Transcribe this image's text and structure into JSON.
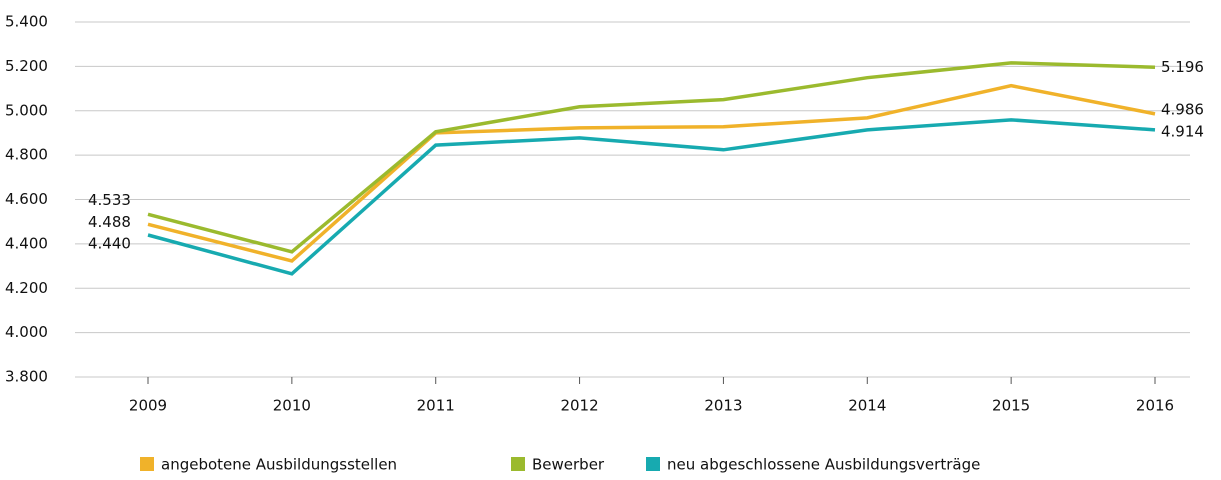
{
  "chart_data": {
    "type": "line",
    "categories": [
      "2009",
      "2010",
      "2011",
      "2012",
      "2013",
      "2014",
      "2015",
      "2016"
    ],
    "series": [
      {
        "name": "angebotene Ausbildungsstellen",
        "color": "#f0b22a",
        "values": [
          4488,
          4323,
          4900,
          4923,
          4928,
          4968,
          5113,
          4986
        ],
        "value_labels": [
          "4.488",
          null,
          null,
          null,
          null,
          null,
          null,
          "4.986"
        ]
      },
      {
        "name": "Bewerber",
        "color": "#9bba2e",
        "values": [
          4533,
          4364,
          4905,
          5018,
          5050,
          5149,
          5216,
          5196
        ],
        "value_labels": [
          "4.533",
          null,
          null,
          null,
          null,
          null,
          null,
          "5.196"
        ]
      },
      {
        "name": "neu abgeschlossene Ausbildungsverträge",
        "color": "#17aab0",
        "values": [
          4440,
          4265,
          4845,
          4878,
          4824,
          4914,
          4959,
          4914
        ],
        "value_labels": [
          "4.440",
          null,
          null,
          null,
          null,
          null,
          null,
          "4.914"
        ]
      }
    ],
    "ylim": [
      3800,
      5400
    ],
    "yticks": [
      {
        "value": 3800,
        "label": "3.800"
      },
      {
        "value": 4000,
        "label": "4.000"
      },
      {
        "value": 4200,
        "label": "4.200"
      },
      {
        "value": 4400,
        "label": "4.400"
      },
      {
        "value": 4600,
        "label": "4.600"
      },
      {
        "value": 4800,
        "label": "4.800"
      },
      {
        "value": 5000,
        "label": "5.000"
      },
      {
        "value": 5200,
        "label": "5.200"
      },
      {
        "value": 5400,
        "label": "5.400"
      }
    ],
    "grid": true
  }
}
